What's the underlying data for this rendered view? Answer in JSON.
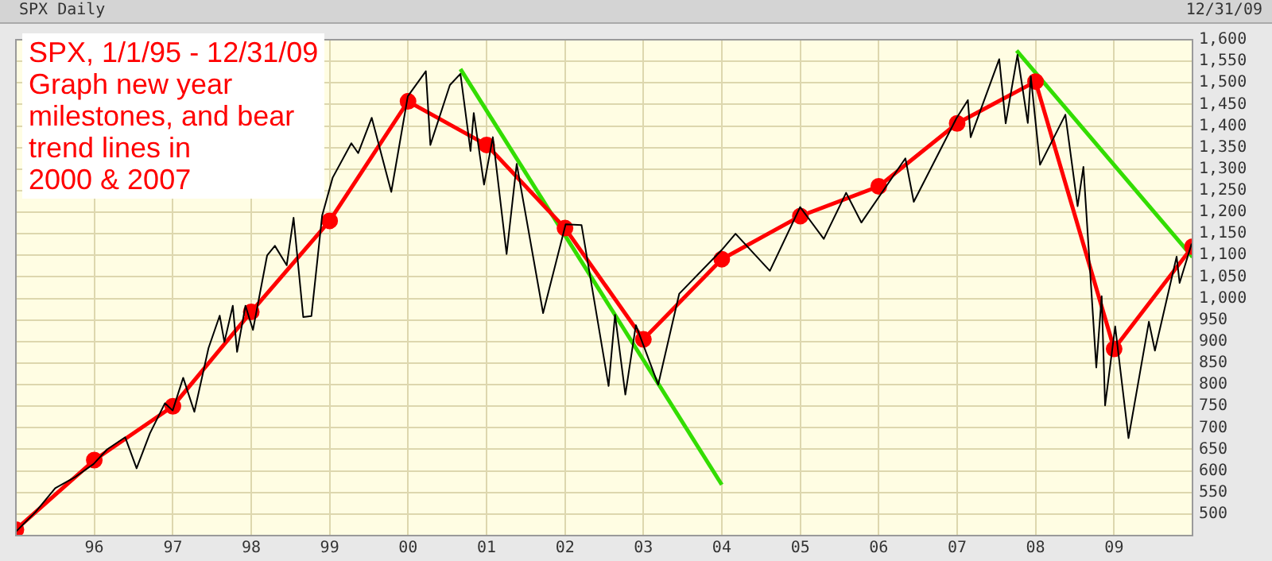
{
  "chart_data": {
    "type": "line",
    "title": "SPX Daily",
    "annotations": [
      "SPX, 1/1/95 - 12/31/09\nGraph new year\nmilestones, and bear\ntrend lines in\n2000 & 2007",
      "12/31/09"
    ],
    "xlim": [
      "1995-01-01",
      "2010-01-01"
    ],
    "xticks": [
      {
        "value": "1996-01-01",
        "label": "96"
      },
      {
        "value": "1997-01-01",
        "label": "97"
      },
      {
        "value": "1998-01-01",
        "label": "98"
      },
      {
        "value": "1999-01-01",
        "label": "99"
      },
      {
        "value": "2000-01-01",
        "label": "00"
      },
      {
        "value": "2001-01-01",
        "label": "01"
      },
      {
        "value": "2002-01-01",
        "label": "02"
      },
      {
        "value": "2003-01-01",
        "label": "03"
      },
      {
        "value": "2004-01-01",
        "label": "04"
      },
      {
        "value": "2005-01-01",
        "label": "05"
      },
      {
        "value": "2006-01-01",
        "label": "06"
      },
      {
        "value": "2007-01-01",
        "label": "07"
      },
      {
        "value": "2008-01-01",
        "label": "08"
      },
      {
        "value": "2009-01-01",
        "label": "09"
      }
    ],
    "ylim": [
      450,
      1600
    ],
    "yticks": [
      500,
      550,
      600,
      650,
      700,
      750,
      800,
      850,
      900,
      950,
      {
        "value": 1000,
        "label": "1,000"
      },
      {
        "value": 1050,
        "label": "1,050"
      },
      {
        "value": 1100,
        "label": "1,100"
      },
      {
        "value": 1150,
        "label": "1,150"
      },
      {
        "value": 1200,
        "label": "1,200"
      },
      {
        "value": 1250,
        "label": "1,250"
      },
      {
        "value": 1300,
        "label": "1,300"
      },
      {
        "value": 1350,
        "label": "1,350"
      },
      {
        "value": 1400,
        "label": "1,400"
      },
      {
        "value": 1450,
        "label": "1,450"
      },
      {
        "value": 1500,
        "label": "1,500"
      },
      {
        "value": 1550,
        "label": "1,550"
      },
      {
        "value": 1600,
        "label": "1,600"
      }
    ],
    "grid": true,
    "legend": false,
    "line_style": "solid",
    "series": [
      {
        "color": "#000000",
        "marker": "none",
        "x": [
          "1995-01-03",
          "1995-04-03",
          "1995-07-03",
          "1995-10-02",
          "1995-12-29",
          "1996-03-01",
          "1996-05-24",
          "1996-07-16",
          "1996-09-16",
          "1996-11-25",
          "1996-12-31",
          "1997-02-18",
          "1997-04-11",
          "1997-06-16",
          "1997-08-07",
          "1997-08-29",
          "1997-10-07",
          "1997-10-27",
          "1997-12-05",
          "1998-01-09",
          "1998-03-16",
          "1998-04-21",
          "1998-06-15",
          "1998-07-17",
          "1998-08-31",
          "1998-10-08",
          "1998-11-27",
          "1999-01-15",
          "1999-04-12",
          "1999-05-14",
          "1999-07-16",
          "1999-10-15",
          "1999-12-31",
          "2000-03-24",
          "2000-04-14",
          "2000-07-14",
          "2000-09-01",
          "2000-10-18",
          "2000-11-02",
          "2000-12-20",
          "2001-01-30",
          "2001-04-04",
          "2001-05-21",
          "2001-09-21",
          "2002-01-04",
          "2002-03-19",
          "2002-07-23",
          "2002-08-22",
          "2002-10-09",
          "2002-11-27",
          "2003-03-11",
          "2003-06-17",
          "2003-12-31",
          "2004-03-05",
          "2004-08-12",
          "2004-12-31",
          "2005-04-20",
          "2005-08-02",
          "2005-10-12",
          "2006-05-05",
          "2006-06-13",
          "2006-12-29",
          "2007-02-20",
          "2007-03-05",
          "2007-07-16",
          "2007-08-15",
          "2007-10-09",
          "2007-11-26",
          "2007-12-10",
          "2008-01-22",
          "2008-05-19",
          "2008-07-15",
          "2008-08-11",
          "2008-10-10",
          "2008-11-04",
          "2008-11-20",
          "2009-01-06",
          "2009-03-09",
          "2009-06-12",
          "2009-07-10",
          "2009-10-19",
          "2009-11-02",
          "2009-12-28"
        ],
        "values": [
          460,
          505,
          560,
          585,
          616,
          650,
          678,
          606,
          687,
          757,
          740,
          816,
          737,
          885,
          960,
          899,
          983,
          876,
          983,
          927,
          1100,
          1122,
          1077,
          1187,
          957,
          959,
          1192,
          1280,
          1360,
          1337,
          1419,
          1247,
          1469,
          1527,
          1356,
          1495,
          1521,
          1342,
          1430,
          1264,
          1374,
          1103,
          1312,
          966,
          1172,
          1170,
          797,
          962,
          777,
          938,
          800,
          1011,
          1112,
          1150,
          1064,
          1212,
          1138,
          1245,
          1176,
          1325,
          1224,
          1418,
          1460,
          1374,
          1555,
          1406,
          1565,
          1407,
          1515,
          1310,
          1426,
          1214,
          1305,
          840,
          1005,
          752,
          935,
          676,
          946,
          879,
          1097,
          1036,
          1127
        ]
      },
      {
        "color": "#ff0000",
        "marker": "circle",
        "x": [
          "1995-01-01",
          "1996-01-01",
          "1997-01-01",
          "1998-01-01",
          "1999-01-01",
          "2000-01-01",
          "2001-01-01",
          "2002-01-01",
          "2003-01-01",
          "2004-01-01",
          "2005-01-01",
          "2006-01-01",
          "2007-01-01",
          "2008-01-01",
          "2009-01-01",
          "2010-01-01"
        ],
        "values": [
          464,
          625,
          750,
          969,
          1180,
          1457,
          1356,
          1163,
          905,
          1091,
          1191,
          1260,
          1406,
          1503,
          883,
          1120
        ]
      },
      {
        "color": "#33dd00",
        "marker": "none",
        "x": [
          "2000-09-01",
          "2004-01-01"
        ],
        "values": [
          1532,
          568
        ]
      },
      {
        "color": "#33dd00",
        "marker": "none",
        "x": [
          "2007-10-05",
          "2010-01-01"
        ],
        "values": [
          1575,
          1096
        ]
      }
    ]
  }
}
